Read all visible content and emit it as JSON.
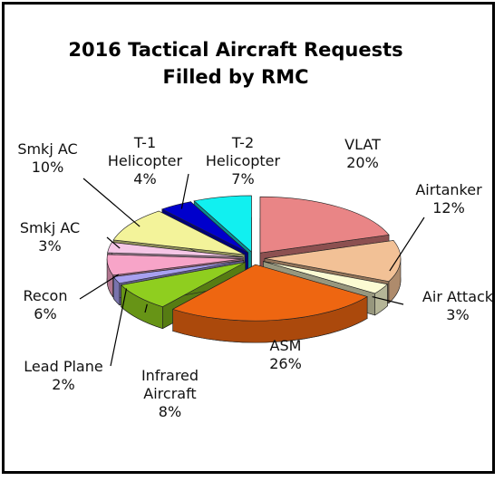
{
  "chart_data": {
    "type": "pie3d",
    "title": "2016 Tactical Aircraft Requests Filled by RMC",
    "categories": [
      "VLAT",
      "Airtanker",
      "Air Attack",
      "ASM",
      "Infrared Aircraft",
      "Lead Plane",
      "Recon",
      "Smkj AC",
      "Smkj AC",
      "T-1 Helicopter",
      "T-2 Helicopter"
    ],
    "values": [
      20,
      12,
      3,
      26,
      8,
      2,
      6,
      3,
      10,
      4,
      7
    ],
    "value_labels": [
      "20%",
      "12%",
      "3%",
      "26%",
      "8%",
      "2%",
      "6%",
      "3%",
      "10%",
      "4%",
      "7%"
    ],
    "colors": [
      "#e98586",
      "#f2c196",
      "#fbfbd2",
      "#ee6611",
      "#8fce1f",
      "#a8a0f0",
      "#f7a4c8",
      "#f5c6e6",
      "#f3f39a",
      "#0000cc",
      "#11f0f0"
    ]
  }
}
